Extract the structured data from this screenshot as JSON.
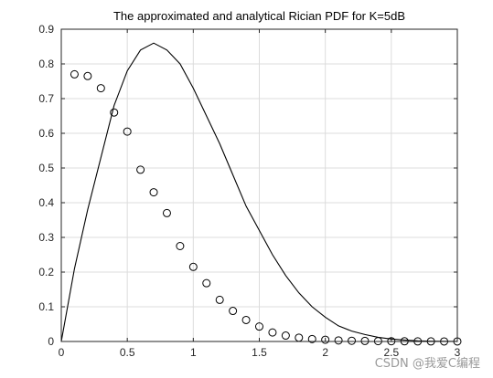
{
  "chart_data": {
    "type": "line+scatter",
    "title": "The approximated and analytical Rician PDF for K=5dB",
    "xlabel": "",
    "ylabel": "",
    "xlim": [
      0,
      3
    ],
    "ylim": [
      0,
      0.9
    ],
    "xticks": [
      0,
      0.5,
      1,
      1.5,
      2,
      2.5,
      3
    ],
    "xtick_labels": [
      "0",
      "0.5",
      "1",
      "1.5",
      "2",
      "2.5",
      "3"
    ],
    "yticks": [
      0,
      0.1,
      0.2,
      0.3,
      0.4,
      0.5,
      0.6,
      0.7,
      0.8,
      0.9
    ],
    "ytick_labels": [
      "0",
      "0.1",
      "0.2",
      "0.3",
      "0.4",
      "0.5",
      "0.6",
      "0.7",
      "0.8",
      "0.9"
    ],
    "grid": true,
    "series": [
      {
        "style": "line",
        "color": "#000000",
        "x": [
          0,
          0.1,
          0.2,
          0.3,
          0.4,
          0.5,
          0.6,
          0.7,
          0.8,
          0.9,
          1.0,
          1.1,
          1.2,
          1.3,
          1.4,
          1.5,
          1.6,
          1.7,
          1.8,
          1.9,
          2.0,
          2.1,
          2.2,
          2.3,
          2.4,
          2.5,
          2.6,
          2.7,
          2.8,
          2.9,
          3.0
        ],
        "y": [
          0,
          0.21,
          0.38,
          0.53,
          0.68,
          0.78,
          0.84,
          0.86,
          0.84,
          0.8,
          0.73,
          0.65,
          0.57,
          0.48,
          0.39,
          0.32,
          0.25,
          0.19,
          0.14,
          0.1,
          0.07,
          0.045,
          0.03,
          0.02,
          0.012,
          0.007,
          0.004,
          0.002,
          0.001,
          0.0005,
          0.0002
        ]
      },
      {
        "style": "markers",
        "marker": "circle",
        "color": "#000000",
        "x": [
          0.1,
          0.2,
          0.3,
          0.4,
          0.5,
          0.6,
          0.7,
          0.8,
          0.9,
          1.0,
          1.1,
          1.2,
          1.3,
          1.4,
          1.5,
          1.6,
          1.7,
          1.8,
          1.9,
          2.0,
          2.1,
          2.2,
          2.3,
          2.4,
          2.5,
          2.6,
          2.7,
          2.8,
          2.9,
          3.0
        ],
        "y": [
          0.77,
          0.765,
          0.73,
          0.66,
          0.605,
          0.495,
          0.43,
          0.37,
          0.275,
          0.215,
          0.168,
          0.12,
          0.088,
          0.062,
          0.043,
          0.026,
          0.017,
          0.011,
          0.007,
          0.005,
          0.003,
          0.002,
          0.0015,
          0.001,
          0.0007,
          0.0005,
          0.0003,
          0.0002,
          0.0001,
          0.0001
        ]
      }
    ]
  },
  "watermark": "CSDN @我爱C编程"
}
